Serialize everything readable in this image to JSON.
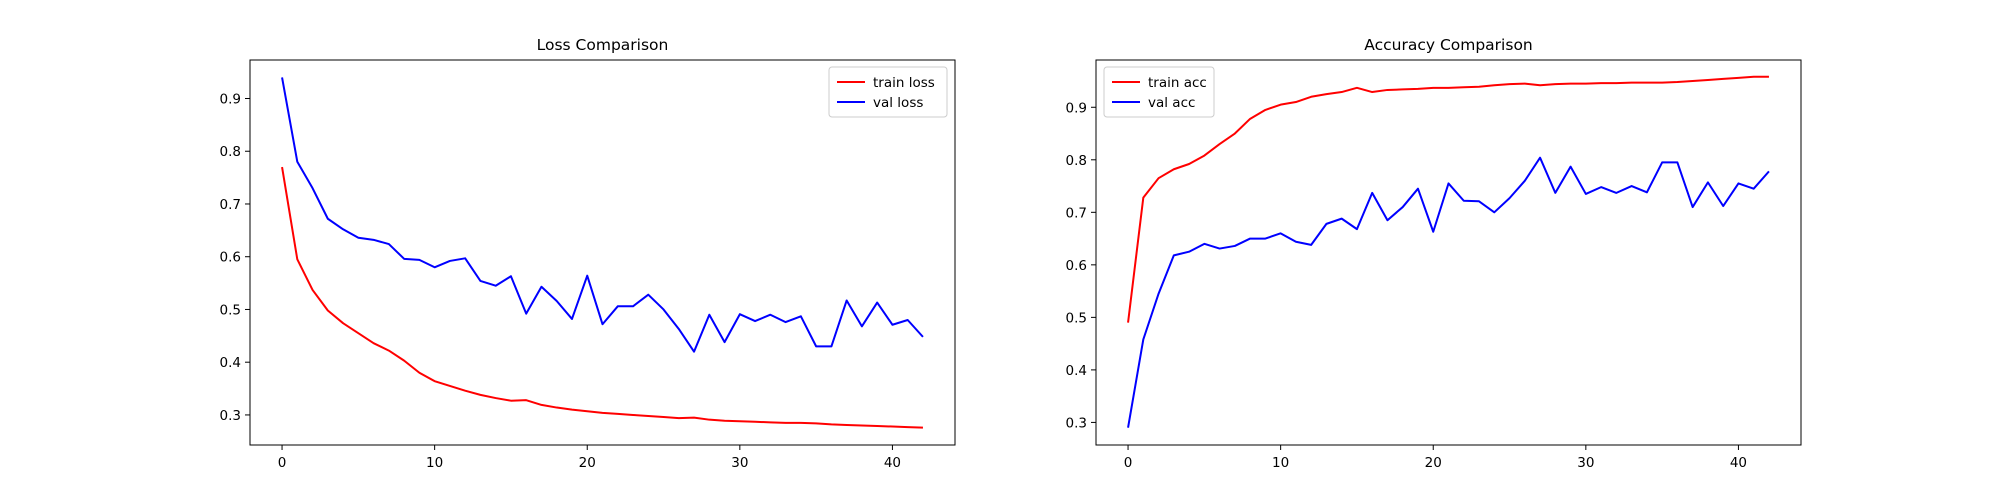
{
  "chart_data": [
    {
      "type": "line",
      "title": "Loss Comparison",
      "xlabel": "",
      "ylabel": "",
      "xlim": [
        -2.1,
        44.1
      ],
      "ylim": [
        0.243,
        0.973
      ],
      "xticks": [
        0,
        10,
        20,
        30,
        40
      ],
      "yticks": [
        0.3,
        0.4,
        0.5,
        0.6,
        0.7,
        0.8,
        0.9
      ],
      "grid": false,
      "legend_position": "upper-right",
      "series": [
        {
          "name": "train loss",
          "color": "#ff0000",
          "x": [
            0,
            1,
            2,
            3,
            4,
            5,
            6,
            7,
            8,
            9,
            10,
            11,
            12,
            13,
            14,
            15,
            16,
            17,
            18,
            19,
            20,
            21,
            22,
            23,
            24,
            25,
            26,
            27,
            28,
            29,
            30,
            31,
            32,
            33,
            34,
            35,
            36,
            37,
            38,
            39,
            40,
            41,
            42
          ],
          "values": [
            0.77,
            0.595,
            0.537,
            0.498,
            0.474,
            0.455,
            0.436,
            0.422,
            0.403,
            0.38,
            0.364,
            0.355,
            0.346,
            0.338,
            0.332,
            0.327,
            0.328,
            0.319,
            0.314,
            0.31,
            0.307,
            0.304,
            0.302,
            0.3,
            0.298,
            0.296,
            0.294,
            0.295,
            0.291,
            0.289,
            0.288,
            0.287,
            0.286,
            0.285,
            0.285,
            0.284,
            0.282,
            0.281,
            0.28,
            0.279,
            0.278,
            0.277,
            0.276
          ]
        },
        {
          "name": "val loss",
          "color": "#0000ff",
          "x": [
            0,
            1,
            2,
            3,
            4,
            5,
            6,
            7,
            8,
            9,
            10,
            11,
            12,
            13,
            14,
            15,
            16,
            17,
            18,
            19,
            20,
            21,
            22,
            23,
            24,
            25,
            26,
            27,
            28,
            29,
            30,
            31,
            32,
            33,
            34,
            35,
            36,
            37,
            38,
            39,
            40,
            41,
            42
          ],
          "values": [
            0.94,
            0.78,
            0.73,
            0.672,
            0.652,
            0.636,
            0.632,
            0.624,
            0.596,
            0.594,
            0.58,
            0.592,
            0.597,
            0.554,
            0.545,
            0.563,
            0.492,
            0.543,
            0.516,
            0.482,
            0.564,
            0.472,
            0.506,
            0.506,
            0.528,
            0.5,
            0.463,
            0.42,
            0.49,
            0.438,
            0.491,
            0.478,
            0.49,
            0.476,
            0.487,
            0.43,
            0.43,
            0.517,
            0.468,
            0.513,
            0.471,
            0.48,
            0.448
          ]
        }
      ]
    },
    {
      "type": "line",
      "title": "Accuracy Comparison",
      "xlabel": "",
      "ylabel": "",
      "xlim": [
        -2.1,
        44.1
      ],
      "ylim": [
        0.257,
        0.99
      ],
      "xticks": [
        0,
        10,
        20,
        30,
        40
      ],
      "yticks": [
        0.3,
        0.4,
        0.5,
        0.6,
        0.7,
        0.8,
        0.9
      ],
      "grid": false,
      "legend_position": "upper-left",
      "series": [
        {
          "name": "train acc",
          "color": "#ff0000",
          "x": [
            0,
            1,
            2,
            3,
            4,
            5,
            6,
            7,
            8,
            9,
            10,
            11,
            12,
            13,
            14,
            15,
            16,
            17,
            18,
            19,
            20,
            21,
            22,
            23,
            24,
            25,
            26,
            27,
            28,
            29,
            30,
            31,
            32,
            33,
            34,
            35,
            36,
            37,
            38,
            39,
            40,
            41,
            42
          ],
          "values": [
            0.49,
            0.728,
            0.765,
            0.782,
            0.792,
            0.808,
            0.83,
            0.85,
            0.878,
            0.895,
            0.905,
            0.91,
            0.92,
            0.925,
            0.929,
            0.937,
            0.929,
            0.933,
            0.934,
            0.935,
            0.937,
            0.937,
            0.938,
            0.939,
            0.942,
            0.944,
            0.945,
            0.942,
            0.944,
            0.945,
            0.945,
            0.946,
            0.946,
            0.947,
            0.947,
            0.947,
            0.948,
            0.95,
            0.952,
            0.954,
            0.956,
            0.958,
            0.958
          ]
        },
        {
          "name": "val acc",
          "color": "#0000ff",
          "x": [
            0,
            1,
            2,
            3,
            4,
            5,
            6,
            7,
            8,
            9,
            10,
            11,
            12,
            13,
            14,
            15,
            16,
            17,
            18,
            19,
            20,
            21,
            22,
            23,
            24,
            25,
            26,
            27,
            28,
            29,
            30,
            31,
            32,
            33,
            34,
            35,
            36,
            37,
            38,
            39,
            40,
            41,
            42
          ],
          "values": [
            0.29,
            0.458,
            0.545,
            0.618,
            0.625,
            0.64,
            0.631,
            0.636,
            0.65,
            0.65,
            0.66,
            0.644,
            0.638,
            0.678,
            0.688,
            0.668,
            0.737,
            0.685,
            0.71,
            0.745,
            0.663,
            0.755,
            0.722,
            0.721,
            0.7,
            0.727,
            0.76,
            0.804,
            0.737,
            0.787,
            0.735,
            0.748,
            0.737,
            0.75,
            0.738,
            0.795,
            0.795,
            0.71,
            0.757,
            0.712,
            0.755,
            0.745,
            0.778
          ]
        }
      ]
    }
  ]
}
